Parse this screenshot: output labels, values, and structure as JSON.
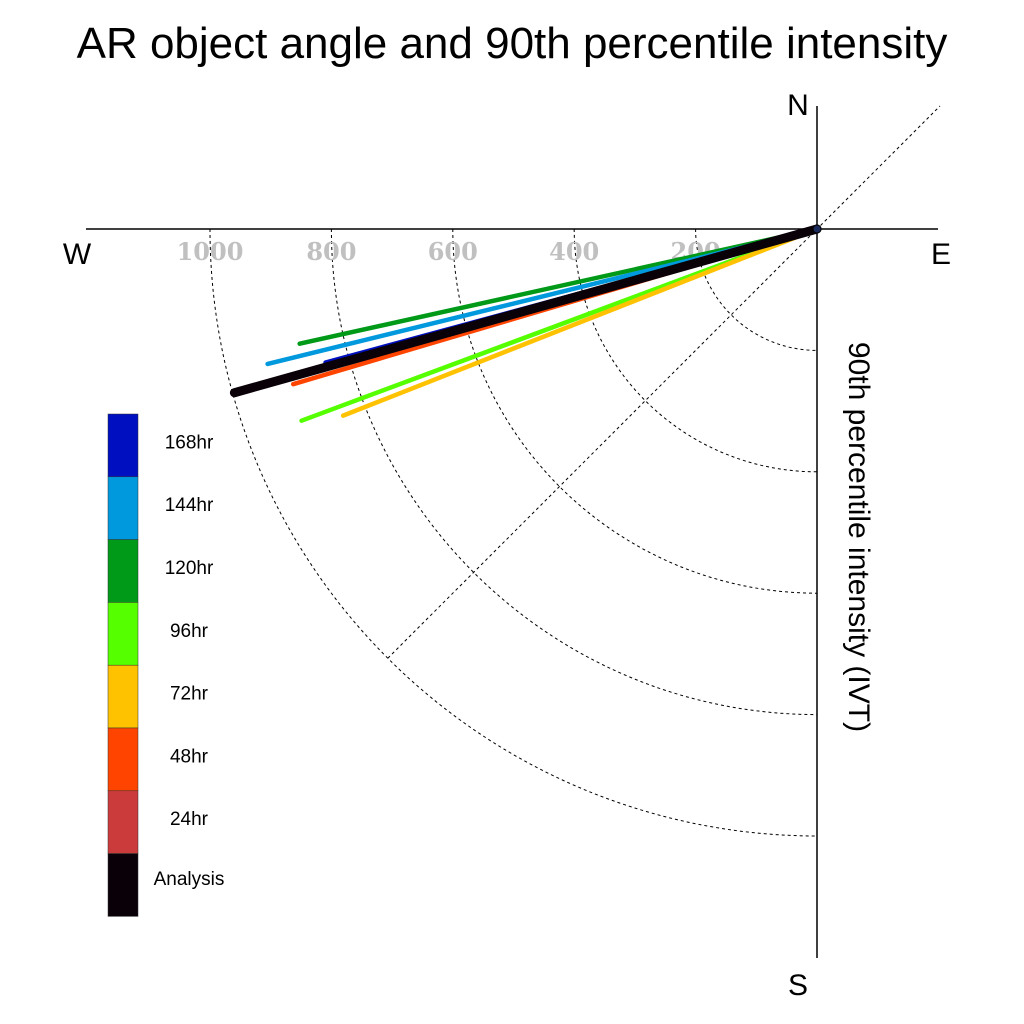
{
  "chart_data": {
    "type": "polar-vector",
    "title": "AR object angle and 90th percentile intensity",
    "ylabel": "90th percentile intensity (IVT)",
    "compass": {
      "north": "N",
      "south": "S",
      "east": "E",
      "west": "W"
    },
    "radial_ticks": [
      {
        "value": 200,
        "label": "200"
      },
      {
        "value": 400,
        "label": "400"
      },
      {
        "value": 600,
        "label": "600"
      },
      {
        "value": 800,
        "label": "800"
      },
      {
        "value": 1000,
        "label": "1000"
      }
    ],
    "rmax": 1000,
    "series": [
      {
        "name": "168hr",
        "color": "#0010c0",
        "angle_deg": 195.2,
        "intensity": 839
      },
      {
        "name": "144hr",
        "color": "#0099dd",
        "angle_deg": 193.8,
        "intensity": 932
      },
      {
        "name": "120hr",
        "color": "#009a18",
        "angle_deg": 192.5,
        "intensity": 873
      },
      {
        "name": "96hr",
        "color": "#55ff00",
        "angle_deg": 200.4,
        "intensity": 906
      },
      {
        "name": "72hr",
        "color": "#ffc200",
        "angle_deg": 201.5,
        "intensity": 839
      },
      {
        "name": "48hr",
        "color": "#ff4400",
        "angle_deg": 196.5,
        "intensity": 900
      },
      {
        "name": "24hr",
        "color": "#cc3b3b",
        "angle_deg": 195.7,
        "intensity": 994
      },
      {
        "name": "Analysis",
        "color": "#0a0008",
        "angle_deg": 195.7,
        "intensity": 997
      }
    ]
  }
}
